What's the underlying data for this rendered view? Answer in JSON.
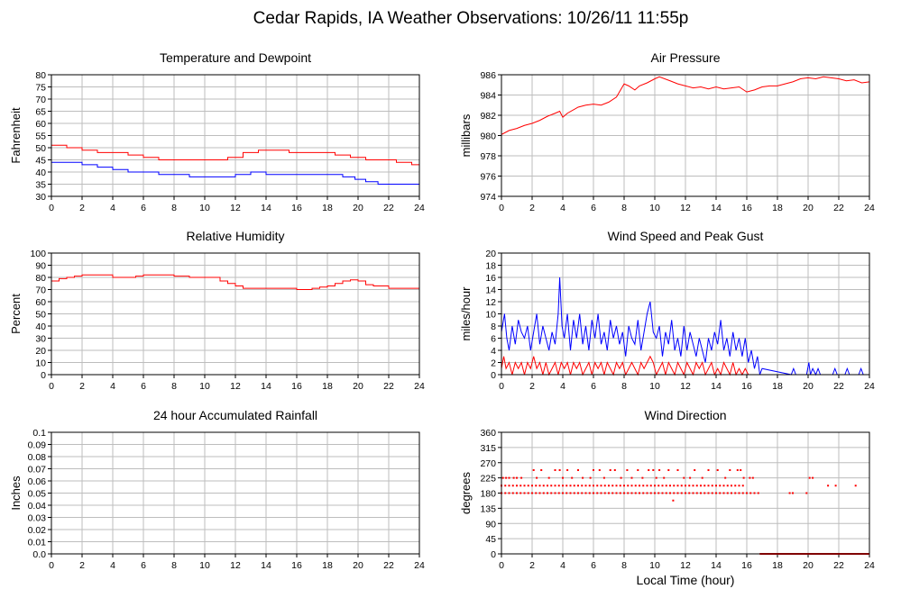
{
  "title": "Cedar Rapids, IA Weather Observations: 10/26/11 11:55p",
  "xaxis_label": "Local Time (hour)",
  "colors": {
    "red": "#ff0000",
    "blue": "#0000ff",
    "grid": "#bdbdbd"
  },
  "chart_data": [
    {
      "id": "temperature",
      "type": "line",
      "title": "Temperature and Dewpoint",
      "xlabel": "",
      "ylabel": "Fahrenheit",
      "xlim": [
        0,
        24
      ],
      "ylim": [
        30,
        80
      ],
      "x_ticks": [
        0,
        2,
        4,
        6,
        8,
        10,
        12,
        14,
        16,
        18,
        20,
        22,
        24
      ],
      "y_ticks": [
        "30",
        "35",
        "40",
        "45",
        "50",
        "55",
        "60",
        "65",
        "70",
        "75",
        "80"
      ],
      "grid": true,
      "series": [
        {
          "color": "#ff0000",
          "step": true,
          "x": [
            0,
            1,
            2,
            3,
            4,
            5,
            6,
            7,
            8,
            9,
            10,
            10.8,
            11.5,
            12.5,
            13.5,
            14.5,
            15.5,
            16.5,
            17.5,
            18.5,
            19.5,
            20.5,
            21.5,
            22.5,
            23.5,
            24
          ],
          "y": [
            51,
            50,
            49,
            48,
            48,
            47,
            46,
            45,
            45,
            45,
            45,
            45,
            46,
            48,
            49,
            49,
            48,
            48,
            48,
            47,
            46,
            45,
            45,
            44,
            43,
            43
          ]
        },
        {
          "color": "#0000ff",
          "step": true,
          "x": [
            0,
            1,
            2,
            3,
            4,
            5,
            6,
            7,
            8,
            9,
            10,
            11,
            12,
            13,
            14,
            15,
            16,
            17,
            18,
            19,
            19.8,
            20.5,
            21.3,
            22,
            23,
            24
          ],
          "y": [
            44,
            44,
            43,
            42,
            41,
            40,
            40,
            39,
            39,
            38,
            38,
            38,
            39,
            40,
            39,
            39,
            39,
            39,
            39,
            38,
            37,
            36,
            35,
            35,
            35,
            34
          ]
        }
      ]
    },
    {
      "id": "pressure",
      "type": "line",
      "title": "Air Pressure",
      "xlabel": "",
      "ylabel": "millibars",
      "xlim": [
        0,
        24
      ],
      "ylim": [
        974,
        986
      ],
      "x_ticks": [
        0,
        2,
        4,
        6,
        8,
        10,
        12,
        14,
        16,
        18,
        20,
        22,
        24
      ],
      "y_ticks": [
        "974",
        "976",
        "978",
        "980",
        "982",
        "984",
        "986"
      ],
      "grid": true,
      "series": [
        {
          "color": "#ff0000",
          "step": false,
          "x": [
            0,
            0.5,
            1,
            1.5,
            2,
            2.5,
            3,
            3.5,
            3.8,
            4,
            4.3,
            5,
            5.5,
            6,
            6.5,
            7,
            7.5,
            8,
            8.3,
            8.7,
            9,
            9.5,
            10,
            10.3,
            11,
            11.5,
            12,
            12.5,
            13,
            13.5,
            14,
            14.5,
            15,
            15.5,
            16,
            16.5,
            17,
            17.5,
            18,
            18.5,
            19,
            19.5,
            20,
            20.5,
            21,
            21.5,
            22,
            22.5,
            23,
            23.5,
            24
          ],
          "y": [
            980.1,
            980.5,
            980.7,
            981,
            981.2,
            981.5,
            981.9,
            982.2,
            982.4,
            981.8,
            982.2,
            982.8,
            983,
            983.1,
            983,
            983.3,
            983.8,
            985.1,
            984.9,
            984.5,
            984.9,
            985.2,
            985.6,
            985.8,
            985.4,
            985.1,
            984.9,
            984.7,
            984.8,
            984.6,
            984.8,
            984.6,
            984.7,
            984.8,
            984.3,
            984.5,
            984.8,
            984.9,
            984.9,
            985.1,
            985.3,
            985.6,
            985.7,
            985.6,
            985.8,
            985.7,
            985.6,
            985.4,
            985.5,
            985.2,
            985.3
          ]
        }
      ]
    },
    {
      "id": "humidity",
      "type": "line",
      "title": "Relative Humidity",
      "xlabel": "",
      "ylabel": "Percent",
      "xlim": [
        0,
        24
      ],
      "ylim": [
        0,
        100
      ],
      "x_ticks": [
        0,
        2,
        4,
        6,
        8,
        10,
        12,
        14,
        16,
        18,
        20,
        22,
        24
      ],
      "y_ticks": [
        "0",
        "10",
        "20",
        "30",
        "40",
        "50",
        "60",
        "70",
        "80",
        "90",
        "100"
      ],
      "grid": true,
      "series": [
        {
          "color": "#ff0000",
          "step": true,
          "x": [
            0,
            0.5,
            1,
            1.5,
            2,
            3,
            4,
            5,
            5.5,
            6,
            7,
            8,
            9,
            10,
            10.5,
            11,
            11.5,
            12,
            12.5,
            13,
            14,
            15,
            16,
            16.5,
            17,
            17.5,
            18,
            18.5,
            19,
            19.5,
            20,
            20.5,
            21,
            22,
            23,
            24
          ],
          "y": [
            77,
            79,
            80,
            81,
            82,
            82,
            80,
            80,
            81,
            82,
            82,
            81,
            80,
            80,
            80,
            77,
            75,
            73,
            71,
            71,
            71,
            71,
            70,
            70,
            71,
            72,
            73,
            75,
            77,
            78,
            77,
            74,
            73,
            71,
            71,
            70
          ]
        }
      ]
    },
    {
      "id": "wind-speed",
      "type": "line",
      "title": "Wind Speed and Peak Gust",
      "xlabel": "",
      "ylabel": "miles/hour",
      "xlim": [
        0,
        24
      ],
      "ylim": [
        0,
        20
      ],
      "x_ticks": [
        0,
        2,
        4,
        6,
        8,
        10,
        12,
        14,
        16,
        18,
        20,
        22,
        24
      ],
      "y_ticks": [
        "0",
        "2",
        "4",
        "6",
        "8",
        "10",
        "12",
        "14",
        "16",
        "18",
        "20"
      ],
      "grid": true,
      "series": [
        {
          "color": "#0000ff",
          "step": false,
          "x": [
            0,
            0.2,
            0.35,
            0.5,
            0.7,
            0.9,
            1.1,
            1.3,
            1.5,
            1.7,
            1.9,
            2.1,
            2.3,
            2.5,
            2.7,
            2.9,
            3.1,
            3.3,
            3.5,
            3.7,
            3.8,
            3.95,
            4.1,
            4.3,
            4.5,
            4.7,
            4.9,
            5.1,
            5.3,
            5.5,
            5.7,
            5.9,
            6.1,
            6.3,
            6.5,
            6.7,
            6.9,
            7.1,
            7.3,
            7.5,
            7.7,
            7.9,
            8.1,
            8.3,
            8.5,
            8.7,
            8.9,
            9.1,
            9.3,
            9.5,
            9.7,
            9.9,
            10.1,
            10.3,
            10.5,
            10.7,
            10.9,
            11.1,
            11.3,
            11.5,
            11.7,
            11.9,
            12.1,
            12.3,
            12.5,
            12.7,
            12.9,
            13.1,
            13.3,
            13.5,
            13.7,
            13.9,
            14.1,
            14.3,
            14.5,
            14.7,
            14.9,
            15.1,
            15.3,
            15.5,
            15.7,
            15.9,
            16.1,
            16.3,
            16.5,
            16.7,
            16.85,
            17,
            18.9,
            19.05,
            19.2,
            19.9,
            20.05,
            20.15,
            20.3,
            20.5,
            20.65,
            20.8,
            21.6,
            21.75,
            21.9,
            22.4,
            22.55,
            22.7,
            23.3,
            23.45,
            23.6,
            24
          ],
          "y": [
            7,
            10,
            6,
            4,
            8,
            5,
            9,
            7,
            6,
            8,
            4,
            7,
            10,
            5,
            8,
            6,
            4,
            7,
            5,
            10,
            16,
            8,
            6,
            10,
            4,
            9,
            6,
            10,
            5,
            8,
            4,
            9,
            6,
            10,
            5,
            7,
            4,
            9,
            6,
            8,
            5,
            7,
            3,
            8,
            6,
            5,
            9,
            4,
            7,
            10,
            12,
            7,
            6,
            8,
            3,
            7,
            5,
            9,
            4,
            6,
            3,
            8,
            4,
            7,
            5,
            3,
            6,
            4,
            2,
            6,
            4,
            7,
            5,
            9,
            4,
            6,
            3,
            7,
            4,
            6,
            3,
            6,
            2,
            4,
            1,
            3,
            0,
            1,
            0,
            1,
            0,
            0,
            2,
            0,
            1,
            0,
            1,
            0,
            0,
            1,
            0,
            0,
            1,
            0,
            0,
            1,
            0,
            0
          ]
        },
        {
          "color": "#ff0000",
          "step": false,
          "x": [
            0,
            0.15,
            0.3,
            0.5,
            0.7,
            0.9,
            1.1,
            1.3,
            1.5,
            1.7,
            1.9,
            2.1,
            2.3,
            2.5,
            2.7,
            2.9,
            3.1,
            3.3,
            3.5,
            3.7,
            3.9,
            4.1,
            4.3,
            4.5,
            4.7,
            4.9,
            5.1,
            5.3,
            5.5,
            5.7,
            5.9,
            6.1,
            6.3,
            6.5,
            6.7,
            6.9,
            7.1,
            7.3,
            7.5,
            7.7,
            7.9,
            8.1,
            8.3,
            8.5,
            8.7,
            8.9,
            9.1,
            9.3,
            9.5,
            9.7,
            9.9,
            10.1,
            10.3,
            10.5,
            10.7,
            10.9,
            11.1,
            11.3,
            11.5,
            11.7,
            11.9,
            12.1,
            12.3,
            12.5,
            12.7,
            12.9,
            13.1,
            13.3,
            13.5,
            13.7,
            13.9,
            14.1,
            14.3,
            14.5,
            14.7,
            14.9,
            15.1,
            15.3,
            15.5,
            15.7,
            15.9,
            16.1,
            16.3,
            24
          ],
          "y": [
            1,
            3,
            1,
            2,
            0,
            2,
            1,
            2,
            0,
            2,
            1,
            3,
            1,
            2,
            0,
            2,
            0,
            1,
            2,
            0,
            2,
            1,
            2,
            0,
            2,
            1,
            2,
            0,
            1,
            2,
            0,
            2,
            1,
            2,
            0,
            2,
            1,
            0,
            2,
            1,
            2,
            0,
            1,
            2,
            1,
            0,
            2,
            1,
            2,
            3,
            2,
            0,
            1,
            2,
            0,
            2,
            1,
            0,
            2,
            1,
            0,
            2,
            1,
            0,
            2,
            1,
            2,
            0,
            1,
            2,
            0,
            1,
            0,
            2,
            1,
            0,
            2,
            0,
            1,
            0,
            1,
            0,
            0,
            0
          ]
        }
      ]
    },
    {
      "id": "rainfall",
      "type": "line",
      "title": "24 hour Accumulated Rainfall",
      "xlabel": "",
      "ylabel": "Inches",
      "xlim": [
        0,
        24
      ],
      "ylim": [
        0,
        0.1
      ],
      "x_ticks": [
        0,
        2,
        4,
        6,
        8,
        10,
        12,
        14,
        16,
        18,
        20,
        22,
        24
      ],
      "y_ticks": [
        "0.0",
        "0.01",
        "0.02",
        "0.03",
        "0.04",
        "0.05",
        "0.06",
        "0.07",
        "0.08",
        "0.09",
        "0.1"
      ],
      "grid": true,
      "series": [
        {
          "color": "#ff0000",
          "step": false,
          "x": [
            0,
            24
          ],
          "y": [
            0,
            0
          ]
        }
      ]
    },
    {
      "id": "wind-direction",
      "type": "scatter",
      "title": "Wind Direction",
      "xlabel": "Local Time (hour)",
      "ylabel": "degrees",
      "xlim": [
        0,
        24
      ],
      "ylim": [
        0,
        360
      ],
      "x_ticks": [
        0,
        2,
        4,
        6,
        8,
        10,
        12,
        14,
        16,
        18,
        20,
        22,
        24
      ],
      "y_ticks": [
        "0",
        "45",
        "90",
        "135",
        "180",
        "225",
        "270",
        "315",
        "360"
      ],
      "grid": true,
      "dense_bands": [
        {
          "x_start": 0,
          "x_end": 16.9,
          "y": 180,
          "spacing": 0.25
        },
        {
          "x_start": 0,
          "x_end": 15.9,
          "y": 202,
          "spacing": 0.25
        },
        {
          "x_start": 16.9,
          "x_end": 24,
          "y": 0,
          "spacing": 0.08
        }
      ],
      "series": [
        {
          "color": "#ff0000",
          "x": [
            0.1,
            0.3,
            0.5,
            0.8,
            1.0,
            1.3,
            2.1,
            2.3,
            2.6,
            3.1,
            3.5,
            3.8,
            4.0,
            4.3,
            4.6,
            5.0,
            5.3,
            5.8,
            6.0,
            6.4,
            6.7,
            7.1,
            7.4,
            7.8,
            8.2,
            8.5,
            8.9,
            9.2,
            9.6,
            9.9,
            10.1,
            10.3,
            10.6,
            10.9,
            11.2,
            11.5,
            11.9,
            12.3,
            12.6,
            13.1,
            13.5,
            14.1,
            14.6,
            14.9,
            15.4,
            15.6,
            15.8,
            16.2,
            16.4,
            18.8,
            19.0,
            19.9,
            20.1,
            20.3,
            21.3,
            21.8,
            23.1
          ],
          "y": [
            225,
            225,
            225,
            225,
            225,
            225,
            248,
            225,
            248,
            225,
            248,
            248,
            225,
            248,
            225,
            248,
            225,
            225,
            248,
            248,
            225,
            248,
            248,
            225,
            248,
            225,
            248,
            225,
            248,
            248,
            225,
            248,
            225,
            248,
            158,
            248,
            225,
            225,
            248,
            225,
            248,
            248,
            225,
            248,
            248,
            248,
            225,
            225,
            225,
            180,
            180,
            180,
            225,
            225,
            202,
            202,
            202
          ]
        }
      ]
    }
  ]
}
